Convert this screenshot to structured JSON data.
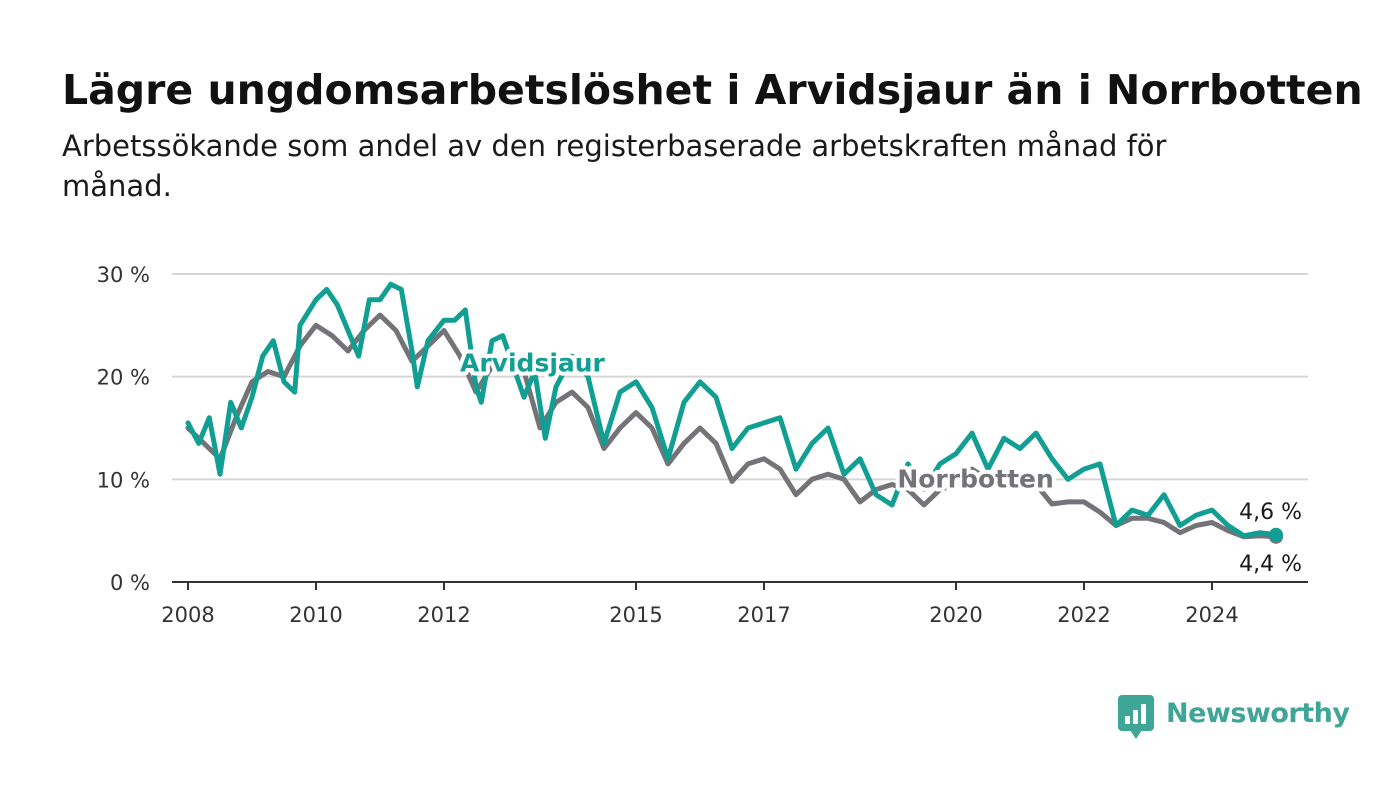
{
  "title": "Lägre ungdomsarbetslöshet i Arvidsjaur än i Norrbotten",
  "subtitle": "Arbetssökande som andel av den registerbaserade arbetskraften månad för månad.",
  "brand": {
    "name": "Newsworthy",
    "color": "#3fa597"
  },
  "colors": {
    "arvidsjaur": "#119f93",
    "norrbotten": "#747378",
    "grid": "#d6d6d6",
    "axis": "#333333"
  },
  "chart_data": {
    "type": "line",
    "title": "Lägre ungdomsarbetslöshet i Arvidsjaur än i Norrbotten",
    "subtitle": "Arbetssökande som andel av den registerbaserade arbetskraften månad för månad.",
    "xlabel": "",
    "ylabel": "",
    "ylim": [
      0,
      30
    ],
    "xlim": [
      "2007-10-01",
      "2025-07-01"
    ],
    "y_ticks": [
      {
        "value": 0,
        "label": "0 %"
      },
      {
        "value": 10,
        "label": "10 %"
      },
      {
        "value": 20,
        "label": "20 %"
      },
      {
        "value": 30,
        "label": "30 %"
      }
    ],
    "x_ticks": [
      {
        "value": "2008-01-01",
        "label": "2008"
      },
      {
        "value": "2010-01-01",
        "label": "2010"
      },
      {
        "value": "2012-01-01",
        "label": "2012"
      },
      {
        "value": "2015-01-01",
        "label": "2015"
      },
      {
        "value": "2017-01-01",
        "label": "2017"
      },
      {
        "value": "2020-01-01",
        "label": "2020"
      },
      {
        "value": "2022-01-01",
        "label": "2022"
      },
      {
        "value": "2024-01-01",
        "label": "2024"
      }
    ],
    "grid": true,
    "series": [
      {
        "name": "Norrbotten",
        "label_position": {
          "x": "2019-02-01",
          "y": 9.2
        },
        "end_label": "4,4 %",
        "points": [
          [
            "2008-01",
            15.0
          ],
          [
            "2008-04",
            13.5
          ],
          [
            "2008-07",
            12.0
          ],
          [
            "2008-10",
            16.0
          ],
          [
            "2009-01",
            19.5
          ],
          [
            "2009-04",
            20.5
          ],
          [
            "2009-07",
            20.0
          ],
          [
            "2009-10",
            23.0
          ],
          [
            "2010-01",
            25.0
          ],
          [
            "2010-04",
            24.0
          ],
          [
            "2010-07",
            22.5
          ],
          [
            "2010-10",
            24.5
          ],
          [
            "2011-01",
            26.0
          ],
          [
            "2011-04",
            24.5
          ],
          [
            "2011-07",
            21.5
          ],
          [
            "2011-10",
            23.0
          ],
          [
            "2012-01",
            24.5
          ],
          [
            "2012-04",
            22.0
          ],
          [
            "2012-07",
            18.5
          ],
          [
            "2012-10",
            21.0
          ],
          [
            "2013-01",
            22.0
          ],
          [
            "2013-04",
            20.5
          ],
          [
            "2013-07",
            15.0
          ],
          [
            "2013-10",
            17.5
          ],
          [
            "2014-01",
            18.5
          ],
          [
            "2014-04",
            17.0
          ],
          [
            "2014-07",
            13.0
          ],
          [
            "2014-10",
            15.0
          ],
          [
            "2015-01",
            16.5
          ],
          [
            "2015-04",
            15.0
          ],
          [
            "2015-07",
            11.5
          ],
          [
            "2015-10",
            13.5
          ],
          [
            "2016-01",
            15.0
          ],
          [
            "2016-04",
            13.5
          ],
          [
            "2016-07",
            9.8
          ],
          [
            "2016-10",
            11.5
          ],
          [
            "2017-01",
            12.0
          ],
          [
            "2017-04",
            11.0
          ],
          [
            "2017-07",
            8.5
          ],
          [
            "2017-10",
            10.0
          ],
          [
            "2018-01",
            10.5
          ],
          [
            "2018-04",
            10.0
          ],
          [
            "2018-07",
            7.8
          ],
          [
            "2018-10",
            9.0
          ],
          [
            "2019-01",
            9.5
          ],
          [
            "2019-04",
            9.0
          ],
          [
            "2019-07",
            7.5
          ],
          [
            "2019-10",
            9.0
          ],
          [
            "2020-01",
            9.5
          ],
          [
            "2020-04",
            11.0
          ],
          [
            "2020-07",
            10.0
          ],
          [
            "2020-10",
            10.5
          ],
          [
            "2021-01",
            10.5
          ],
          [
            "2021-04",
            9.5
          ],
          [
            "2021-07",
            7.6
          ],
          [
            "2021-10",
            7.8
          ],
          [
            "2022-01",
            7.8
          ],
          [
            "2022-04",
            6.8
          ],
          [
            "2022-07",
            5.5
          ],
          [
            "2022-10",
            6.2
          ],
          [
            "2023-01",
            6.2
          ],
          [
            "2023-04",
            5.8
          ],
          [
            "2023-07",
            4.8
          ],
          [
            "2023-10",
            5.5
          ],
          [
            "2024-01",
            5.8
          ],
          [
            "2024-04",
            5.0
          ],
          [
            "2024-07",
            4.4
          ],
          [
            "2024-10",
            4.5
          ],
          [
            "2025-01",
            4.4
          ]
        ]
      },
      {
        "name": "Arvidsjaur",
        "label_position": {
          "x": "2012-04-01",
          "y": 20.5
        },
        "end_label": "4,6 %",
        "points": [
          [
            "2008-01",
            15.5
          ],
          [
            "2008-03",
            13.5
          ],
          [
            "2008-05",
            16.0
          ],
          [
            "2008-07",
            10.5
          ],
          [
            "2008-09",
            17.5
          ],
          [
            "2008-11",
            15.0
          ],
          [
            "2009-01",
            18.0
          ],
          [
            "2009-03",
            22.0
          ],
          [
            "2009-05",
            23.5
          ],
          [
            "2009-07",
            19.5
          ],
          [
            "2009-09",
            18.5
          ],
          [
            "2009-10",
            25.0
          ],
          [
            "2010-01",
            27.5
          ],
          [
            "2010-03",
            28.5
          ],
          [
            "2010-05",
            27.0
          ],
          [
            "2010-07",
            24.5
          ],
          [
            "2010-09",
            22.0
          ],
          [
            "2010-11",
            27.5
          ],
          [
            "2011-01",
            27.5
          ],
          [
            "2011-03",
            29.0
          ],
          [
            "2011-05",
            28.5
          ],
          [
            "2011-07",
            22.5
          ],
          [
            "2011-08",
            19.0
          ],
          [
            "2011-10",
            23.5
          ],
          [
            "2012-01",
            25.5
          ],
          [
            "2012-03",
            25.5
          ],
          [
            "2012-05",
            26.5
          ],
          [
            "2012-07",
            19.0
          ],
          [
            "2012-08",
            17.5
          ],
          [
            "2012-10",
            23.5
          ],
          [
            "2012-12",
            24.0
          ],
          [
            "2013-02",
            21.0
          ],
          [
            "2013-04",
            18.0
          ],
          [
            "2013-06",
            20.5
          ],
          [
            "2013-08",
            14.0
          ],
          [
            "2013-10",
            19.0
          ],
          [
            "2014-01",
            22.0
          ],
          [
            "2014-04",
            20.0
          ],
          [
            "2014-07",
            13.5
          ],
          [
            "2014-10",
            18.5
          ],
          [
            "2015-01",
            19.5
          ],
          [
            "2015-04",
            17.0
          ],
          [
            "2015-07",
            12.0
          ],
          [
            "2015-10",
            17.5
          ],
          [
            "2016-01",
            19.5
          ],
          [
            "2016-04",
            18.0
          ],
          [
            "2016-07",
            13.0
          ],
          [
            "2016-10",
            15.0
          ],
          [
            "2017-01",
            15.5
          ],
          [
            "2017-04",
            16.0
          ],
          [
            "2017-07",
            11.0
          ],
          [
            "2017-10",
            13.5
          ],
          [
            "2018-01",
            15.0
          ],
          [
            "2018-04",
            10.5
          ],
          [
            "2018-07",
            12.0
          ],
          [
            "2018-10",
            8.5
          ],
          [
            "2019-01",
            7.5
          ],
          [
            "2019-04",
            11.5
          ],
          [
            "2019-07",
            9.0
          ],
          [
            "2019-10",
            11.5
          ],
          [
            "2020-01",
            12.5
          ],
          [
            "2020-04",
            14.5
          ],
          [
            "2020-07",
            11.0
          ],
          [
            "2020-10",
            14.0
          ],
          [
            "2021-01",
            13.0
          ],
          [
            "2021-04",
            14.5
          ],
          [
            "2021-07",
            12.0
          ],
          [
            "2021-10",
            10.0
          ],
          [
            "2022-01",
            11.0
          ],
          [
            "2022-04",
            11.5
          ],
          [
            "2022-07",
            5.5
          ],
          [
            "2022-10",
            7.0
          ],
          [
            "2023-01",
            6.5
          ],
          [
            "2023-04",
            8.5
          ],
          [
            "2023-07",
            5.5
          ],
          [
            "2023-10",
            6.5
          ],
          [
            "2024-01",
            7.0
          ],
          [
            "2024-04",
            5.5
          ],
          [
            "2024-07",
            4.5
          ],
          [
            "2024-10",
            4.8
          ],
          [
            "2025-01",
            4.6
          ]
        ]
      }
    ]
  }
}
